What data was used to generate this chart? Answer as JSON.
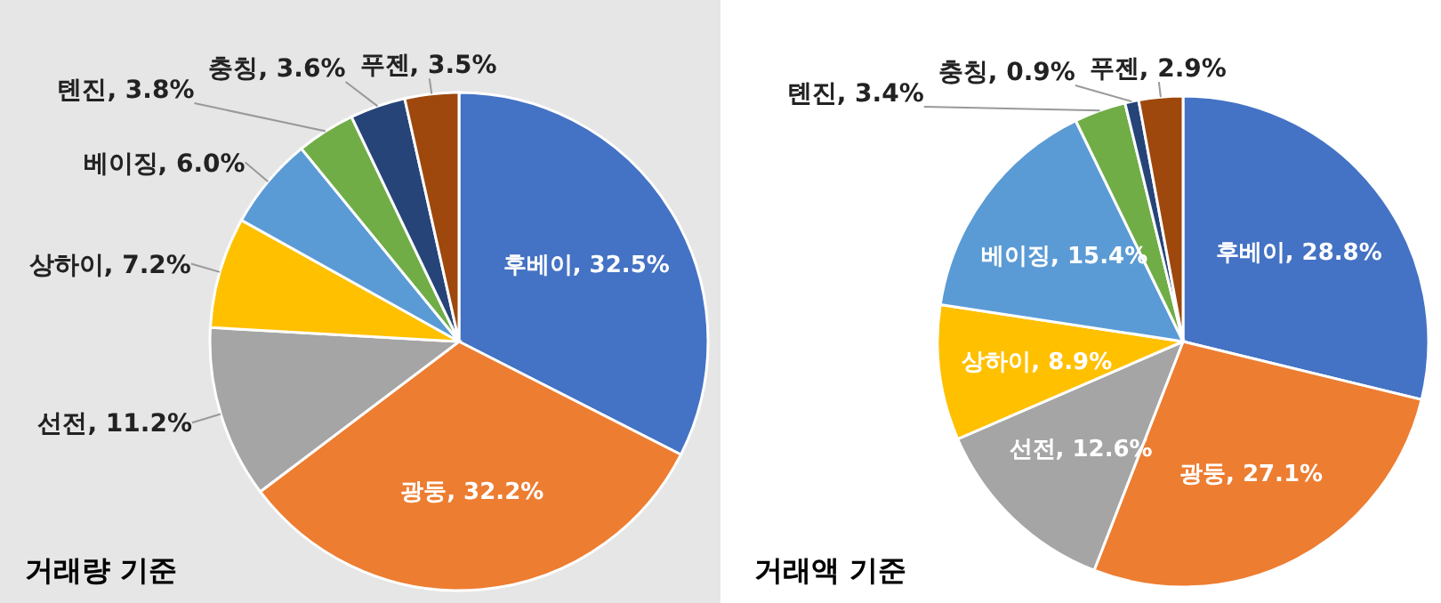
{
  "chart_data": [
    {
      "type": "pie",
      "title": "거래량 기준",
      "categories": [
        "후베이",
        "광둥",
        "선전",
        "상하이",
        "베이징",
        "톈진",
        "충칭",
        "푸젠"
      ],
      "values": [
        32.5,
        32.2,
        11.2,
        7.2,
        6.0,
        3.8,
        3.6,
        3.5
      ],
      "value_labels": [
        ", 32.5%",
        ", 32.2%",
        ", 11.2%",
        ", 7.2%",
        ", 6.0%",
        ", 3.8%",
        ", 3.6%",
        ", 3.5%"
      ],
      "colors": [
        "#4472c4",
        "#ed7d31",
        "#a5a5a5",
        "#ffc000",
        "#5b9bd5",
        "#70ad47",
        "#264478",
        "#9e480e"
      ]
    },
    {
      "type": "pie",
      "title": "거래액 기준",
      "categories": [
        "후베이",
        "광둥",
        "선전",
        "상하이",
        "베이징",
        "톈진",
        "충칭",
        "푸젠"
      ],
      "values": [
        28.8,
        27.1,
        12.6,
        8.9,
        15.4,
        3.4,
        0.9,
        2.9
      ],
      "value_labels": [
        ", 28.8%",
        ", 27.1%",
        ", 12.6%",
        ", 8.9%",
        ", 15.4%",
        ", 3.4%",
        ", 0.9%",
        ", 2.9%"
      ],
      "colors": [
        "#4472c4",
        "#ed7d31",
        "#a5a5a5",
        "#ffc000",
        "#5b9bd5",
        "#70ad47",
        "#264478",
        "#9e480e"
      ]
    }
  ]
}
